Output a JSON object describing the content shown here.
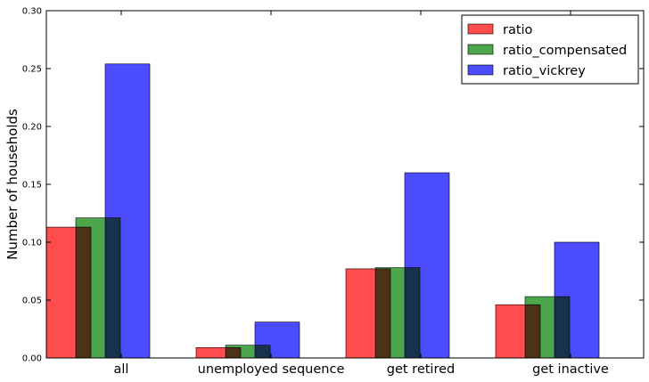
{
  "chart_data": {
    "type": "bar",
    "title": "",
    "xlabel": "",
    "ylabel": "Number of households",
    "ylim": [
      0,
      0.3
    ],
    "yticks": [
      "0.00",
      "0.05",
      "0.10",
      "0.15",
      "0.20",
      "0.25",
      "0.30"
    ],
    "categories": [
      "all",
      "unemployed sequence",
      "get retired",
      "get inactive"
    ],
    "series": [
      {
        "name": "ratio",
        "color": "#ff4c4c",
        "values": [
          0.113,
          0.009,
          0.077,
          0.046
        ]
      },
      {
        "name": "ratio_compensated",
        "color": "#4ca64c",
        "values": [
          0.121,
          0.011,
          0.078,
          0.053
        ]
      },
      {
        "name": "ratio_vickrey",
        "color": "#4c4cff",
        "values": [
          0.254,
          0.031,
          0.16,
          0.1
        ]
      }
    ],
    "grid": false,
    "legend_position": "top-right"
  }
}
